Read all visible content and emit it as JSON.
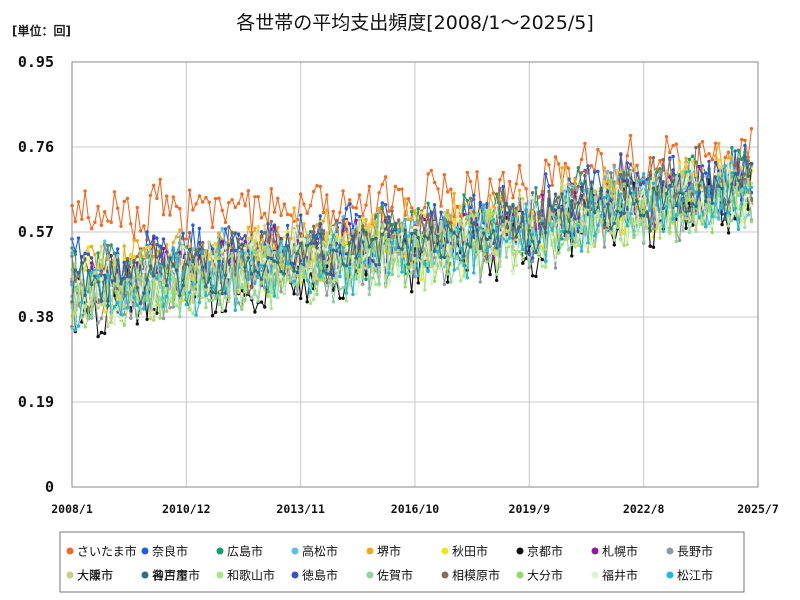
{
  "colors": {
    "grid": "#c8c8c8",
    "axis": "#888888",
    "legend_border": "#777777"
  },
  "chart_data": {
    "type": "line",
    "unit_label": "[単位：回]",
    "title": "各世帯の平均支出頻度[2008/1～2025/5]",
    "xlabel": "",
    "ylabel": "",
    "x_range": [
      "2008/1",
      "2025/7"
    ],
    "ylim": [
      0,
      0.95
    ],
    "y_ticks": [
      "0",
      "0.19",
      "0.38",
      "0.57",
      "0.76",
      "0.95"
    ],
    "x_ticks": [
      "2008/1",
      "2010/12",
      "2013/11",
      "2016/10",
      "2019/9",
      "2022/8",
      "2025/7"
    ],
    "grid": true,
    "legend_position": "bottom",
    "legend_columns": 9,
    "series_note_values": "Monthly values 2008/1–2025/5 approximated per series (base level start→end)",
    "series": [
      {
        "name": "さいたま市",
        "color": "#f36a21",
        "base": [
          0.6,
          0.7
        ],
        "amp": 0.05
      },
      {
        "name": "奈良市",
        "color": "#1f5de0",
        "base": [
          0.49,
          0.67
        ],
        "amp": 0.06
      },
      {
        "name": "広島市",
        "color": "#12a06d",
        "base": [
          0.46,
          0.66
        ],
        "amp": 0.06
      },
      {
        "name": "高松市",
        "color": "#5bbbe9",
        "base": [
          0.46,
          0.64
        ],
        "amp": 0.06
      },
      {
        "name": "堺市",
        "color": "#f0a81e",
        "base": [
          0.48,
          0.67
        ],
        "amp": 0.06
      },
      {
        "name": "秋田市",
        "color": "#f3e60c",
        "base": [
          0.45,
          0.63
        ],
        "amp": 0.06
      },
      {
        "name": "京都市",
        "color": "#111111",
        "base": [
          0.4,
          0.62
        ],
        "amp": 0.06
      },
      {
        "name": "札幌市",
        "color": "#8b1a9e",
        "base": [
          0.47,
          0.64
        ],
        "amp": 0.05
      },
      {
        "name": "長野市",
        "color": "#8d9aa2",
        "base": [
          0.42,
          0.62
        ],
        "amp": 0.06
      },
      {
        "name": "大阪市",
        "color": "#f5cc46",
        "base": [
          0.46,
          0.65
        ],
        "amp": 0.05
      },
      {
        "name": "名古屋市",
        "color": "#b7d66b",
        "base": [
          0.43,
          0.62
        ],
        "amp": 0.06
      },
      {
        "name": "和歌山市",
        "color": "#a9e68a",
        "base": [
          0.42,
          0.62
        ],
        "amp": 0.06
      },
      {
        "name": "徳島市",
        "color": "#3b4fc7",
        "base": [
          0.46,
          0.64
        ],
        "amp": 0.05
      },
      {
        "name": "佐賀市",
        "color": "#8fd3a1",
        "base": [
          0.42,
          0.62
        ],
        "amp": 0.06
      },
      {
        "name": "相模原市",
        "color": "#8b6d55",
        "base": [
          0.46,
          0.67
        ],
        "amp": 0.06
      },
      {
        "name": "大分市",
        "color": "#93d96a",
        "base": [
          0.43,
          0.62
        ],
        "amp": 0.06
      },
      {
        "name": "福井市",
        "color": "#e1f0d2",
        "base": [
          0.43,
          0.63
        ],
        "amp": 0.06
      },
      {
        "name": "松江市",
        "color": "#1eb7df",
        "base": [
          0.42,
          0.63
        ],
        "amp": 0.06
      },
      {
        "name": "大津市",
        "color": "#c6d08c",
        "base": [
          0.43,
          0.64
        ],
        "amp": 0.06
      },
      {
        "name": "神戸市",
        "color": "#2f6f80",
        "base": [
          0.45,
          0.64
        ],
        "amp": 0.05
      }
    ]
  }
}
